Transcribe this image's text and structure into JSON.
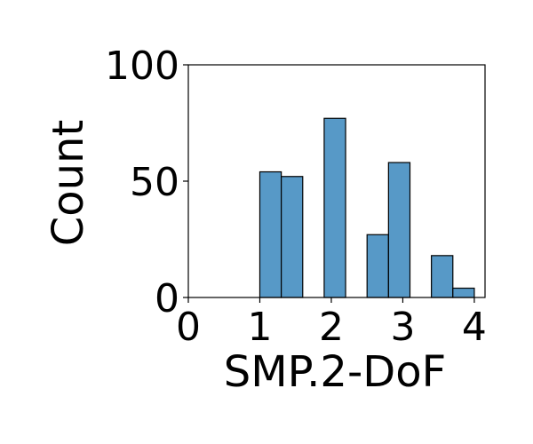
{
  "chart_data": {
    "type": "bar",
    "title": "",
    "xlabel": "SMP.2-DoF",
    "ylabel": "Count",
    "xlim": [
      0,
      4.15
    ],
    "ylim": [
      0,
      100
    ],
    "x_ticks": [
      0,
      1,
      2,
      3,
      4
    ],
    "x_tick_labels": [
      "0",
      "1",
      "2",
      "3",
      "4"
    ],
    "y_ticks": [
      0,
      50,
      100
    ],
    "y_tick_labels": [
      "0",
      "50",
      "100"
    ],
    "bin_width": 0.3,
    "bins": [
      {
        "x0": 1.0,
        "x1": 1.3,
        "count": 54
      },
      {
        "x0": 1.3,
        "x1": 1.6,
        "count": 52
      },
      {
        "x0": 1.9,
        "x1": 2.2,
        "count": 77
      },
      {
        "x0": 2.5,
        "x1": 2.8,
        "count": 27
      },
      {
        "x0": 2.8,
        "x1": 3.1,
        "count": 58
      },
      {
        "x0": 3.4,
        "x1": 3.7,
        "count": 18
      },
      {
        "x0": 3.7,
        "x1": 4.0,
        "count": 4
      }
    ],
    "bar_color": "#5799c7",
    "edge_color": "#000000",
    "grid": false,
    "legend": "none"
  }
}
